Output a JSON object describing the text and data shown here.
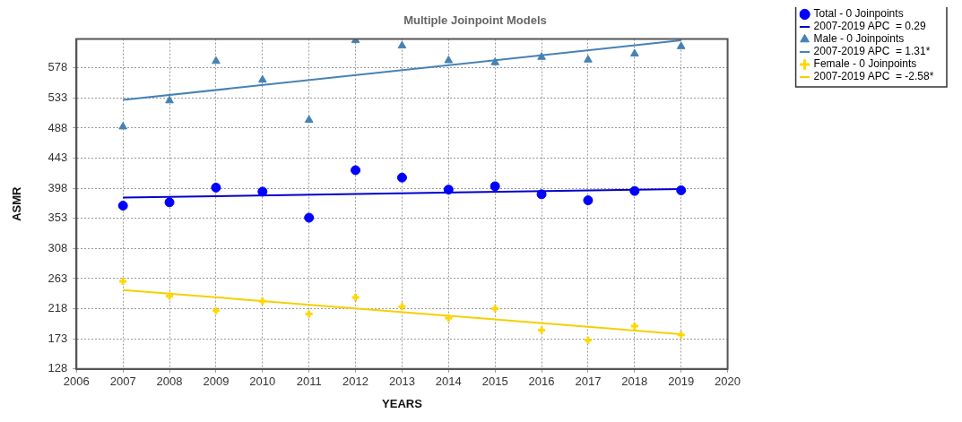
{
  "chart_data": {
    "type": "scatter",
    "title": "Multiple Joinpoint Models",
    "xlabel": "YEARS",
    "ylabel": "ASMR",
    "xlim": [
      2006,
      2020
    ],
    "xticks": [
      2006,
      2007,
      2008,
      2009,
      2010,
      2011,
      2012,
      2013,
      2014,
      2015,
      2016,
      2017,
      2018,
      2019,
      2020
    ],
    "ylim": [
      128,
      621
    ],
    "yticks": [
      128,
      173,
      218,
      263,
      308,
      353,
      398,
      443,
      488,
      533,
      578
    ],
    "grid": true,
    "legend": "top right",
    "series": [
      {
        "name": "Total - 0 Joinpoints",
        "type": "scatter",
        "marker": "circle",
        "color": "#0000ff",
        "x": [
          2007,
          2008,
          2009,
          2010,
          2011,
          2012,
          2013,
          2014,
          2015,
          2016,
          2017,
          2018,
          2019
        ],
        "values": [
          372,
          377,
          399,
          393,
          354,
          425,
          414,
          396,
          401,
          389,
          380,
          394,
          395
        ]
      },
      {
        "name": "2007-2019 APC  = 0.29",
        "type": "line",
        "marker": "none",
        "color": "#0000cd",
        "x": [
          2007,
          2019
        ],
        "values": [
          384,
          397
        ]
      },
      {
        "name": "Male - 0 Joinpoints",
        "type": "scatter",
        "marker": "triangle",
        "color": "#4682b4",
        "x": [
          2007,
          2008,
          2009,
          2010,
          2011,
          2012,
          2013,
          2014,
          2015,
          2016,
          2017,
          2018,
          2019
        ],
        "values": [
          490,
          529,
          588,
          560,
          500,
          619,
          611,
          589,
          586,
          594,
          590,
          599,
          610
        ]
      },
      {
        "name": "2007-2019 APC  = 1.31*",
        "type": "line",
        "marker": "none",
        "color": "#4682b4",
        "x": [
          2007,
          2019
        ],
        "values": [
          530,
          619
        ]
      },
      {
        "name": "Female - 0 Joinpoints",
        "type": "scatter",
        "marker": "cross",
        "color": "#ffd700",
        "x": [
          2007,
          2008,
          2009,
          2010,
          2011,
          2012,
          2013,
          2014,
          2015,
          2016,
          2017,
          2018,
          2019
        ],
        "values": [
          259,
          237,
          215,
          229,
          210,
          235,
          221,
          204,
          218,
          186,
          171,
          192,
          179
        ]
      },
      {
        "name": "2007-2019 APC  = -2.58*",
        "type": "line",
        "marker": "none",
        "color": "#f5d000",
        "x": [
          2007,
          2019
        ],
        "values": [
          246,
          180
        ]
      }
    ]
  }
}
